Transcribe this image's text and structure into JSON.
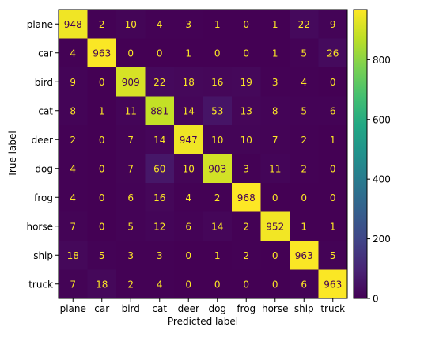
{
  "chart_data": {
    "type": "heatmap",
    "title": "",
    "xlabel": "Predicted label",
    "ylabel": "True label",
    "x_categories": [
      "plane",
      "car",
      "bird",
      "cat",
      "deer",
      "dog",
      "frog",
      "horse",
      "ship",
      "truck"
    ],
    "y_categories": [
      "plane",
      "car",
      "bird",
      "cat",
      "deer",
      "dog",
      "frog",
      "horse",
      "ship",
      "truck"
    ],
    "values": [
      [
        948,
        2,
        10,
        4,
        3,
        1,
        0,
        1,
        22,
        9
      ],
      [
        4,
        963,
        0,
        0,
        1,
        0,
        0,
        1,
        5,
        26
      ],
      [
        9,
        0,
        909,
        22,
        18,
        16,
        19,
        3,
        4,
        0
      ],
      [
        8,
        1,
        11,
        881,
        14,
        53,
        13,
        8,
        5,
        6
      ],
      [
        2,
        0,
        7,
        14,
        947,
        10,
        10,
        7,
        2,
        1
      ],
      [
        4,
        0,
        7,
        60,
        10,
        903,
        3,
        11,
        2,
        0
      ],
      [
        4,
        0,
        6,
        16,
        4,
        2,
        968,
        0,
        0,
        0
      ],
      [
        7,
        0,
        5,
        12,
        6,
        14,
        2,
        952,
        1,
        1
      ],
      [
        18,
        5,
        3,
        3,
        0,
        1,
        2,
        0,
        963,
        5
      ],
      [
        7,
        18,
        2,
        4,
        0,
        0,
        0,
        0,
        6,
        963
      ]
    ],
    "colormap": "viridis",
    "colorbar": {
      "range": [
        0,
        968
      ],
      "ticks": [
        0,
        200,
        400,
        600,
        800
      ]
    },
    "text_colors": {
      "low": "#fde725",
      "high": "#440154"
    },
    "text_threshold": 484
  }
}
